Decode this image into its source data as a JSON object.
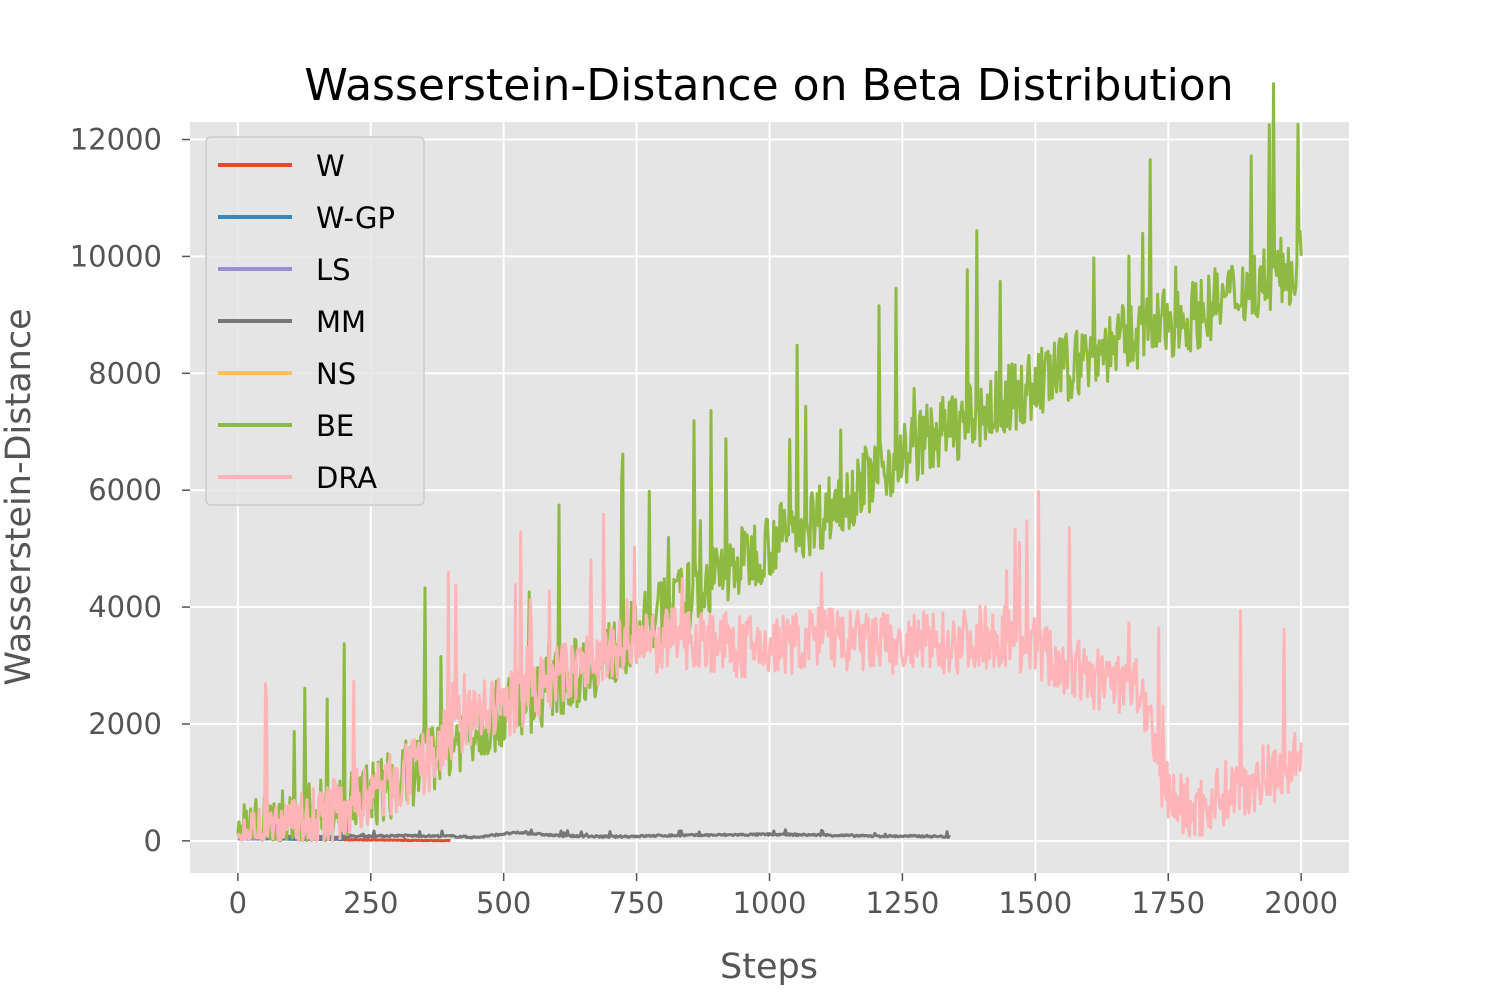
{
  "chart_data": {
    "type": "line",
    "title": "Wasserstein-Distance on Beta Distribution",
    "xlabel": "Steps",
    "ylabel": "Wasserstein-Distance",
    "xlim": [
      -90,
      2090
    ],
    "ylim": [
      -550,
      12300
    ],
    "xticks": [
      0,
      250,
      500,
      750,
      1000,
      1250,
      1500,
      1750,
      2000
    ],
    "xtick_labels": [
      "0",
      "250",
      "500",
      "750",
      "1000",
      "1250",
      "1500",
      "1750",
      "2000"
    ],
    "yticks": [
      0,
      2000,
      4000,
      6000,
      8000,
      10000,
      12000
    ],
    "ytick_labels": [
      "0",
      "2000",
      "4000",
      "6000",
      "8000",
      "10000",
      "12000"
    ],
    "grid": true,
    "legend_position": "top-left",
    "series": [
      {
        "name": "W",
        "color": "#E24A33",
        "x": [
          0,
          100,
          200,
          300,
          400
        ],
        "y": [
          60,
          30,
          20,
          10,
          5
        ],
        "noise": 10,
        "period": 2
      },
      {
        "name": "W-GP",
        "color": "#348ABD",
        "x": [
          0,
          100,
          200
        ],
        "y": [
          40,
          30,
          30
        ],
        "noise": 8,
        "period": 2
      },
      {
        "name": "LS",
        "color": "#988ED5",
        "x": [
          0,
          50
        ],
        "y": [
          30,
          30
        ],
        "noise": 5,
        "period": 2
      },
      {
        "name": "MM",
        "color": "#777777",
        "x": [
          0,
          100,
          200,
          300,
          400,
          450,
          500,
          530,
          600,
          700,
          800,
          900,
          1000,
          1100,
          1200,
          1300,
          1340
        ],
        "y": [
          60,
          70,
          70,
          90,
          80,
          60,
          120,
          140,
          90,
          70,
          90,
          100,
          110,
          100,
          80,
          80,
          70
        ],
        "noise": 30,
        "period": 2
      },
      {
        "name": "NS",
        "color": "#FBC15E",
        "x": [
          0,
          10,
          20,
          25
        ],
        "y": [
          200,
          250,
          180,
          150
        ],
        "noise": 30,
        "period": 2
      },
      {
        "name": "BE",
        "color": "#8EBA42",
        "x": [
          0,
          100,
          200,
          300,
          400,
          500,
          600,
          700,
          800,
          900,
          1000,
          1100,
          1200,
          1300,
          1400,
          1500,
          1600,
          1700,
          1800,
          1900,
          1990,
          2000
        ],
        "y": [
          100,
          300,
          600,
          1000,
          1700,
          2200,
          2700,
          3200,
          3900,
          4500,
          5100,
          5600,
          6300,
          6900,
          7300,
          7800,
          8300,
          8700,
          9000,
          9500,
          9800,
          10500
        ],
        "noise": 1100,
        "period": 2
      },
      {
        "name": "DRA",
        "color": "#FFB5B8",
        "x": [
          0,
          50,
          100,
          150,
          200,
          250,
          300,
          350,
          400,
          450,
          500,
          550,
          600,
          650,
          700,
          750,
          800,
          850,
          900,
          950,
          1000,
          1050,
          1100,
          1150,
          1200,
          1250,
          1300,
          1350,
          1400,
          1450,
          1500,
          1550,
          1600,
          1650,
          1700,
          1730,
          1760,
          1800,
          1850,
          1900,
          1950,
          2000
        ],
        "y": [
          50,
          100,
          200,
          400,
          600,
          800,
          1000,
          1300,
          1800,
          2200,
          2300,
          2500,
          2800,
          3000,
          3200,
          3300,
          3400,
          3500,
          3400,
          3300,
          3300,
          3400,
          3500,
          3400,
          3400,
          3300,
          3400,
          3400,
          3500,
          3500,
          3300,
          3000,
          2800,
          2700,
          2600,
          1200,
          700,
          500,
          800,
          1000,
          1200,
          1400
        ],
        "noise": 1000,
        "period": 2
      }
    ]
  }
}
